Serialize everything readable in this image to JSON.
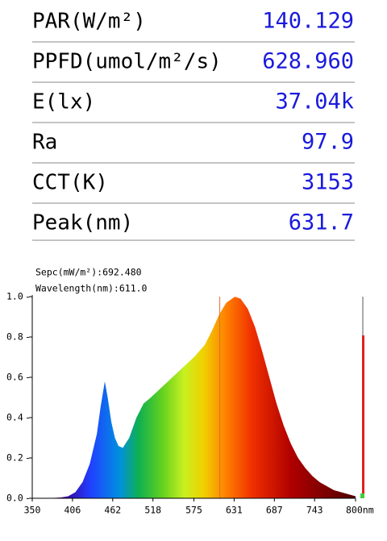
{
  "measurements": {
    "rows": [
      [
        "PAR(W/m²)",
        "140.129"
      ],
      [
        "PPFD(umol/m²/s)",
        "628.960"
      ],
      [
        "E(lx)",
        "37.04k"
      ],
      [
        "Ra",
        "97.9"
      ],
      [
        "CCT(K)",
        "3153"
      ],
      [
        "Peak(nm)",
        "631.7"
      ]
    ]
  },
  "chart_data": {
    "type": "area",
    "annotations": [
      "Sepc(mW/m²):692.480",
      "Wavelength(nm):611.0"
    ],
    "cursor_wavelength": 611,
    "x": [
      350,
      360,
      370,
      380,
      390,
      400,
      410,
      420,
      430,
      440,
      445,
      451,
      455,
      460,
      465,
      470,
      476,
      485,
      495,
      505,
      515,
      530,
      545,
      560,
      575,
      590,
      600,
      610,
      620,
      632,
      640,
      650,
      660,
      670,
      680,
      690,
      700,
      710,
      720,
      730,
      740,
      750,
      760,
      770,
      780,
      790,
      800
    ],
    "values": [
      0,
      0,
      0,
      0.002,
      0.004,
      0.01,
      0.03,
      0.08,
      0.17,
      0.32,
      0.45,
      0.58,
      0.5,
      0.38,
      0.3,
      0.26,
      0.25,
      0.3,
      0.4,
      0.47,
      0.5,
      0.55,
      0.6,
      0.65,
      0.7,
      0.76,
      0.83,
      0.91,
      0.97,
      1.0,
      0.99,
      0.94,
      0.85,
      0.73,
      0.6,
      0.47,
      0.36,
      0.27,
      0.2,
      0.15,
      0.11,
      0.08,
      0.06,
      0.04,
      0.03,
      0.02,
      0.01
    ],
    "xlim": [
      350,
      800
    ],
    "ylim": [
      0,
      1
    ],
    "xticks": [
      350,
      406,
      462,
      518,
      575,
      631,
      687,
      743,
      {
        "value": 800,
        "label": "800nm"
      }
    ],
    "yticks": [
      {
        "value": 0,
        "label": "0.0"
      },
      {
        "value": 0.2,
        "label": "0.2"
      },
      {
        "value": 0.4,
        "label": "0.4"
      },
      {
        "value": 0.6,
        "label": "0.6"
      },
      {
        "value": 0.8,
        "label": "0.8"
      },
      {
        "value": 1,
        "label": "1.0"
      }
    ]
  }
}
